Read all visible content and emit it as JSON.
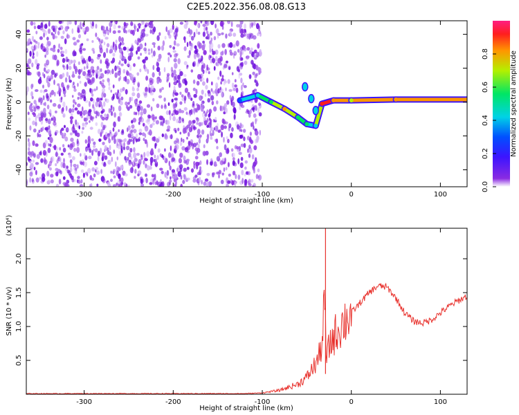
{
  "title": "C2E5.2022.356.08.08.G13",
  "chart_data": [
    {
      "type": "heatmap",
      "xlabel": "Height of straight line (km)",
      "ylabel": "Frequency (Hz)",
      "xlim": [
        -365,
        130
      ],
      "ylim": [
        -50,
        48
      ],
      "x_ticks": [
        -300,
        -200,
        -100,
        0,
        100
      ],
      "y_ticks": [
        -40,
        -20,
        0,
        20,
        40
      ],
      "colorbar": {
        "label": "Normalized spectral amplitude",
        "range": [
          0.0,
          1.0
        ],
        "ticks": [
          "0.0",
          "0.2",
          "0.4",
          "0.6",
          "0.8"
        ]
      },
      "features": {
        "noise_region_x": [
          -365,
          -105
        ],
        "signal_track": [
          {
            "x": -125,
            "y": 1,
            "amp": 0.3
          },
          {
            "x": -105,
            "y": 4,
            "amp": 0.45
          },
          {
            "x": -90,
            "y": 0,
            "amp": 0.55
          },
          {
            "x": -75,
            "y": -4,
            "amp": 0.75
          },
          {
            "x": -60,
            "y": -9,
            "amp": 0.6
          },
          {
            "x": -50,
            "y": -13,
            "amp": 0.5
          },
          {
            "x": -40,
            "y": -14,
            "amp": 0.4
          },
          {
            "x": -33,
            "y": -1,
            "amp": 0.9
          },
          {
            "x": -20,
            "y": 1,
            "amp": 0.85
          },
          {
            "x": 0,
            "y": 1,
            "amp": 0.7
          },
          {
            "x": 50,
            "y": 1.5,
            "amp": 0.85
          },
          {
            "x": 130,
            "y": 1.5,
            "amp": 0.8
          }
        ]
      }
    },
    {
      "type": "line",
      "xlabel": "Height of straight line (km)",
      "ylabel": "SNR (10 * v/v)",
      "y_multiplier": "(x10⁴)",
      "xlim": [
        -365,
        130
      ],
      "ylim": [
        0,
        2.45
      ],
      "x_ticks": [
        -300,
        -200,
        -100,
        0,
        100
      ],
      "y_ticks": [
        "0.5",
        "1.0",
        "1.5",
        "2.0"
      ],
      "series": [
        {
          "color": "#e8322d",
          "x": [
            -365,
            -300,
            -200,
            -120,
            -100,
            -80,
            -60,
            -50,
            -40,
            -35,
            -32,
            -30,
            -28,
            -25,
            -20,
            -15,
            -10,
            0,
            10,
            20,
            30,
            40,
            50,
            60,
            70,
            80,
            90,
            100,
            110,
            120,
            130
          ],
          "y": [
            0.01,
            0.01,
            0.01,
            0.01,
            0.02,
            0.06,
            0.15,
            0.25,
            0.45,
            0.6,
            0.9,
            1.4,
            0.5,
            0.7,
            0.85,
            0.95,
            1.05,
            1.2,
            1.35,
            1.5,
            1.6,
            1.58,
            1.42,
            1.2,
            1.08,
            1.05,
            1.1,
            1.2,
            1.3,
            1.38,
            1.45
          ]
        }
      ],
      "spike": {
        "x": -29,
        "y": 2.45
      }
    }
  ]
}
